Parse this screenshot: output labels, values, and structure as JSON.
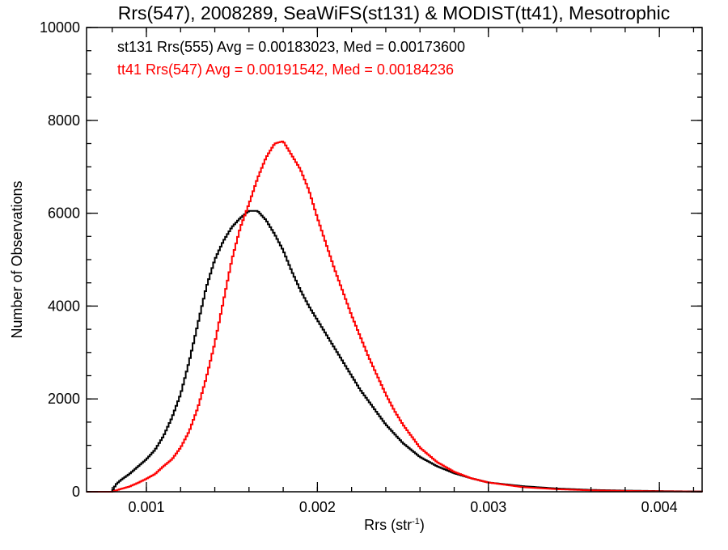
{
  "chart_data": {
    "type": "line",
    "title": "Rrs(547), 2008289, SeaWiFS(st131) & MODIST(tt41), Mesotrophic",
    "xlabel_main": "Rrs (str",
    "xlabel_sup": "-1",
    "xlabel_end": ")",
    "ylabel": "Number of Observations",
    "xlim": [
      0.00065,
      0.00425
    ],
    "ylim": [
      0,
      10000
    ],
    "xticks": [
      0.001,
      0.002,
      0.003,
      0.004
    ],
    "xtick_labels": [
      "0.001",
      "0.002",
      "0.003",
      "0.004"
    ],
    "yticks": [
      0,
      2000,
      4000,
      6000,
      8000,
      10000
    ],
    "ytick_labels": [
      "0",
      "2000",
      "4000",
      "6000",
      "8000",
      "10000"
    ],
    "grid": false,
    "annotations": [
      {
        "text": "st131 Rrs(555) Avg = 0.00183023, Med = 0.00173600",
        "color": "#000000"
      },
      {
        "text": "tt41 Rrs(547) Avg = 0.00191542, Med = 0.00184236",
        "color": "#ff0000"
      }
    ],
    "series": [
      {
        "color": "#000000",
        "points": [
          [
            0.00065,
            0
          ],
          [
            0.0008,
            0
          ],
          [
            0.00082,
            150
          ],
          [
            0.00085,
            250
          ],
          [
            0.0009,
            380
          ],
          [
            0.00095,
            540
          ],
          [
            0.001,
            700
          ],
          [
            0.00105,
            900
          ],
          [
            0.0011,
            1200
          ],
          [
            0.00115,
            1600
          ],
          [
            0.0012,
            2100
          ],
          [
            0.00125,
            2800
          ],
          [
            0.0013,
            3600
          ],
          [
            0.00135,
            4400
          ],
          [
            0.0014,
            5000
          ],
          [
            0.00145,
            5400
          ],
          [
            0.0015,
            5700
          ],
          [
            0.00155,
            5900
          ],
          [
            0.0016,
            6050
          ],
          [
            0.00165,
            6050
          ],
          [
            0.0017,
            5850
          ],
          [
            0.00175,
            5550
          ],
          [
            0.0018,
            5200
          ],
          [
            0.00185,
            4750
          ],
          [
            0.0019,
            4350
          ],
          [
            0.00195,
            4000
          ],
          [
            0.002,
            3700
          ],
          [
            0.00205,
            3400
          ],
          [
            0.0021,
            3100
          ],
          [
            0.00215,
            2800
          ],
          [
            0.0022,
            2500
          ],
          [
            0.00225,
            2200
          ],
          [
            0.0023,
            1950
          ],
          [
            0.00235,
            1700
          ],
          [
            0.0024,
            1450
          ],
          [
            0.00245,
            1250
          ],
          [
            0.0025,
            1050
          ],
          [
            0.0026,
            750
          ],
          [
            0.0027,
            550
          ],
          [
            0.0028,
            400
          ],
          [
            0.0029,
            290
          ],
          [
            0.003,
            200
          ],
          [
            0.0032,
            120
          ],
          [
            0.0034,
            70
          ],
          [
            0.0036,
            40
          ],
          [
            0.0038,
            25
          ],
          [
            0.004,
            15
          ],
          [
            0.00425,
            5
          ]
        ]
      },
      {
        "color": "#ff0000",
        "points": [
          [
            0.00065,
            0
          ],
          [
            0.0008,
            0
          ],
          [
            0.00085,
            60
          ],
          [
            0.0009,
            110
          ],
          [
            0.00095,
            190
          ],
          [
            0.001,
            280
          ],
          [
            0.00105,
            380
          ],
          [
            0.0011,
            550
          ],
          [
            0.00115,
            700
          ],
          [
            0.0012,
            950
          ],
          [
            0.00125,
            1300
          ],
          [
            0.0013,
            1800
          ],
          [
            0.00135,
            2450
          ],
          [
            0.0014,
            3200
          ],
          [
            0.00145,
            4100
          ],
          [
            0.0015,
            5000
          ],
          [
            0.00155,
            5700
          ],
          [
            0.0016,
            6200
          ],
          [
            0.00165,
            6750
          ],
          [
            0.0017,
            7200
          ],
          [
            0.00175,
            7500
          ],
          [
            0.0018,
            7550
          ],
          [
            0.00185,
            7250
          ],
          [
            0.0019,
            6950
          ],
          [
            0.00195,
            6500
          ],
          [
            0.002,
            5900
          ],
          [
            0.00205,
            5350
          ],
          [
            0.0021,
            4800
          ],
          [
            0.00215,
            4300
          ],
          [
            0.0022,
            3800
          ],
          [
            0.00225,
            3350
          ],
          [
            0.0023,
            2900
          ],
          [
            0.00235,
            2500
          ],
          [
            0.0024,
            2100
          ],
          [
            0.00245,
            1750
          ],
          [
            0.0025,
            1450
          ],
          [
            0.0026,
            950
          ],
          [
            0.0027,
            640
          ],
          [
            0.0028,
            430
          ],
          [
            0.0029,
            290
          ],
          [
            0.003,
            200
          ],
          [
            0.0032,
            100
          ],
          [
            0.0034,
            55
          ],
          [
            0.0036,
            30
          ],
          [
            0.0038,
            18
          ],
          [
            0.004,
            10
          ],
          [
            0.00425,
            3
          ]
        ]
      }
    ]
  }
}
